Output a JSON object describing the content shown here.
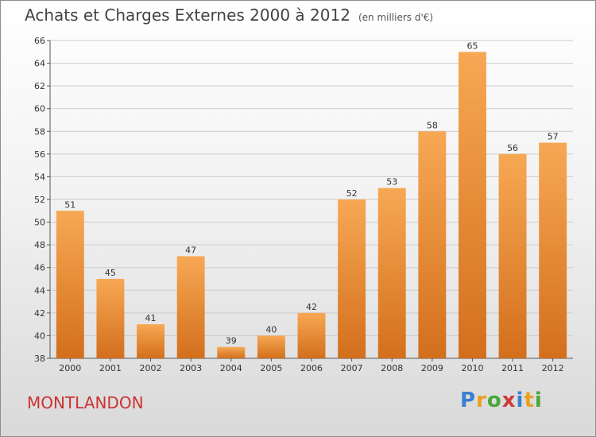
{
  "header": {
    "title": "Achats et Charges Externes 2000 à 2012",
    "unit": "(en milliers d'€)"
  },
  "commune": "MONTLANDON",
  "logo": {
    "text": "Proxiti",
    "letters": [
      {
        "ch": "P",
        "color": "#3a7fd0"
      },
      {
        "ch": "r",
        "color": "#e8a020"
      },
      {
        "ch": "o",
        "color": "#4aa838"
      },
      {
        "ch": "x",
        "color": "#d03a3a"
      },
      {
        "ch": "i",
        "color": "#3a7fd0"
      },
      {
        "ch": "t",
        "color": "#e8a020"
      },
      {
        "ch": "i",
        "color": "#4aa838"
      }
    ]
  },
  "colors": {
    "bar_top": "#f7a854",
    "bar_bottom": "#d36f1c",
    "grid": "#cccccc",
    "axis": "#555555"
  },
  "chart_data": {
    "type": "bar",
    "categories": [
      "2000",
      "2001",
      "2002",
      "2003",
      "2004",
      "2005",
      "2006",
      "2007",
      "2008",
      "2009",
      "2010",
      "2011",
      "2012"
    ],
    "values": [
      51,
      45,
      41,
      47,
      39,
      40,
      42,
      52,
      53,
      58,
      65,
      56,
      57
    ],
    "title": "Achats et Charges Externes 2000 à 2012",
    "subtitle": "(en milliers d'€)",
    "ylim": [
      38,
      66
    ],
    "yticks": [
      38,
      40,
      42,
      44,
      46,
      48,
      50,
      52,
      54,
      56,
      58,
      60,
      62,
      64,
      66
    ],
    "grid": true,
    "data_labels": true
  }
}
